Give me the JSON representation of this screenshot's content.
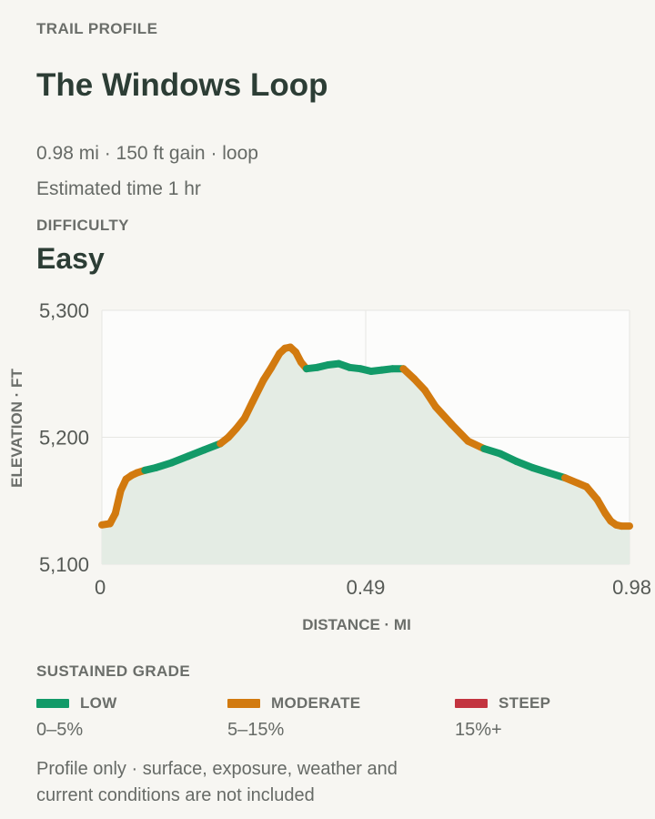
{
  "header": {
    "eyebrow": "TRAIL PROFILE",
    "title": "The Windows Loop",
    "stats": "0.98 mi · 150 ft gain · loop",
    "time": "Estimated time 1 hr"
  },
  "difficulty": {
    "label": "DIFFICULTY",
    "value": "Easy"
  },
  "chart_data": {
    "type": "area",
    "xlabel": "DISTANCE · MI",
    "ylabel": "ELEVATION · FT",
    "xlim": [
      0,
      0.98
    ],
    "ylim": [
      5100,
      5300
    ],
    "x_ticks": [
      0,
      0.49,
      0.98
    ],
    "x_tick_labels": [
      "0",
      "0.49",
      "0.98"
    ],
    "y_ticks": [
      5100,
      5200,
      5300
    ],
    "y_tick_labels": [
      "5,100",
      "5,200",
      "5,300"
    ],
    "grid": true,
    "series": [
      {
        "x": [
          0,
          0.015,
          0.025,
          0.035,
          0.045,
          0.055,
          0.065,
          0.08,
          0.1,
          0.13,
          0.16,
          0.19,
          0.22,
          0.235,
          0.25,
          0.265,
          0.28,
          0.3,
          0.315,
          0.33,
          0.34,
          0.35,
          0.36,
          0.37,
          0.38,
          0.4,
          0.42,
          0.44,
          0.46,
          0.48,
          0.5,
          0.52,
          0.54,
          0.56,
          0.58,
          0.6,
          0.62,
          0.65,
          0.68,
          0.71,
          0.74,
          0.77,
          0.8,
          0.83,
          0.86,
          0.9,
          0.92,
          0.935,
          0.945,
          0.955,
          0.965,
          0.98
        ],
        "y": [
          5131,
          5132,
          5140,
          5158,
          5167,
          5170,
          5172,
          5174,
          5176,
          5180,
          5185,
          5190,
          5195,
          5200,
          5207,
          5215,
          5228,
          5245,
          5255,
          5266,
          5270,
          5271,
          5267,
          5259,
          5254,
          5255,
          5257,
          5258,
          5255,
          5254,
          5252,
          5253,
          5254,
          5254,
          5246,
          5237,
          5224,
          5210,
          5197,
          5191,
          5187,
          5181,
          5176,
          5172,
          5168,
          5161,
          5151,
          5140,
          5134,
          5131,
          5130,
          5130
        ],
        "grade": [
          "moderate",
          "moderate",
          "moderate",
          "moderate",
          "moderate",
          "moderate",
          "moderate",
          "low",
          "low",
          "low",
          "low",
          "low",
          "moderate",
          "moderate",
          "moderate",
          "moderate",
          "moderate",
          "moderate",
          "moderate",
          "moderate",
          "moderate",
          "moderate",
          "moderate",
          "moderate",
          "low",
          "low",
          "low",
          "low",
          "low",
          "low",
          "low",
          "low",
          "low",
          "moderate",
          "moderate",
          "moderate",
          "moderate",
          "moderate",
          "moderate",
          "low",
          "low",
          "low",
          "low",
          "low",
          "moderate",
          "moderate",
          "moderate",
          "moderate",
          "moderate",
          "moderate",
          "moderate"
        ]
      }
    ]
  },
  "legend": {
    "title": "SUSTAINED GRADE",
    "items": [
      {
        "name": "LOW",
        "range": "0–5%",
        "color": "#129a68"
      },
      {
        "name": "MODERATE",
        "range": "5–15%",
        "color": "#d27a0f"
      },
      {
        "name": "STEEP",
        "range": "15%+",
        "color": "#c3343f"
      }
    ]
  },
  "note": "Profile only · surface, exposure, weather and current conditions are not included",
  "colors": {
    "low": "#129a68",
    "moderate": "#d27a0f",
    "steep": "#c3343f",
    "fill": "#e4ece4",
    "plot_bg": "#fcfcfb",
    "grid": "#e6e6e3"
  }
}
